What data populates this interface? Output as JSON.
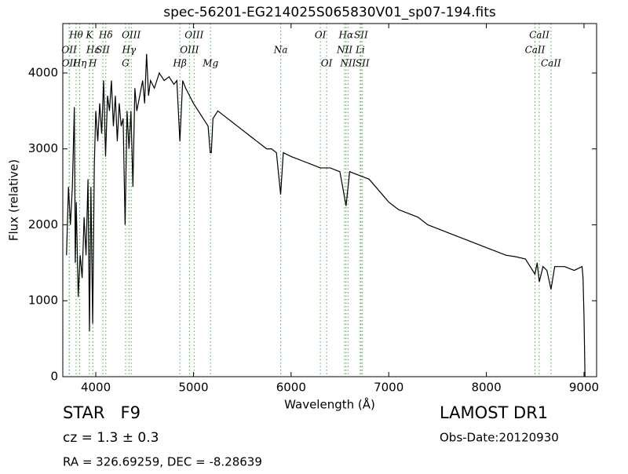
{
  "chart_data": {
    "type": "line",
    "title": "spec-56201-EG214025S065830V01_sp07-194.fits",
    "x_label": "Wavelength (Å)",
    "y_label": "Flux (relative)",
    "xlim": [
      3662,
      9129
    ],
    "ylim": [
      0,
      4651
    ],
    "xticks": [
      4000,
      5000,
      6000,
      7000,
      8000,
      9000
    ],
    "yticks": [
      0,
      1000,
      2000,
      3000,
      4000
    ],
    "color": "#000000",
    "line_color": "#44aa44",
    "x": [
      3700,
      3720,
      3740,
      3760,
      3780,
      3790,
      3800,
      3820,
      3840,
      3860,
      3880,
      3900,
      3920,
      3935,
      3950,
      3968,
      3985,
      4000,
      4020,
      4040,
      4060,
      4080,
      4100,
      4120,
      4140,
      4160,
      4180,
      4200,
      4220,
      4240,
      4260,
      4280,
      4300,
      4320,
      4340,
      4360,
      4380,
      4400,
      4420,
      4450,
      4480,
      4500,
      4520,
      4540,
      4560,
      4600,
      4650,
      4700,
      4750,
      4800,
      4830,
      4861,
      4890,
      4920,
      4960,
      5000,
      5050,
      5100,
      5150,
      5172,
      5183,
      5200,
      5250,
      5300,
      5350,
      5400,
      5450,
      5500,
      5550,
      5600,
      5650,
      5700,
      5750,
      5800,
      5850,
      5893,
      5920,
      6000,
      6100,
      6200,
      6300,
      6400,
      6500,
      6563,
      6600,
      6700,
      6800,
      6900,
      7000,
      7100,
      7200,
      7300,
      7400,
      7500,
      7600,
      7700,
      7800,
      7900,
      8000,
      8100,
      8200,
      8300,
      8400,
      8498,
      8520,
      8542,
      8580,
      8620,
      8662,
      8700,
      8800,
      8900,
      8980,
      8990,
      9000,
      9010
    ],
    "values": [
      1600,
      2500,
      2000,
      2500,
      3550,
      1500,
      2300,
      1050,
      1600,
      1300,
      2100,
      1600,
      2600,
      600,
      2500,
      700,
      2800,
      3500,
      3100,
      3600,
      3200,
      3900,
      2900,
      3700,
      3500,
      3900,
      3300,
      3700,
      3100,
      3600,
      3300,
      3400,
      2000,
      3500,
      3000,
      3500,
      2500,
      3800,
      3500,
      3700,
      3900,
      3600,
      4250,
      3700,
      3900,
      3800,
      4000,
      3900,
      3950,
      3850,
      3900,
      3100,
      3900,
      3800,
      3700,
      3600,
      3500,
      3400,
      3300,
      2950,
      2950,
      3400,
      3500,
      3450,
      3400,
      3350,
      3300,
      3250,
      3200,
      3150,
      3100,
      3050,
      3000,
      3000,
      2950,
      2400,
      2950,
      2900,
      2850,
      2800,
      2750,
      2750,
      2700,
      2250,
      2700,
      2650,
      2600,
      2450,
      2300,
      2200,
      2150,
      2100,
      2000,
      1950,
      1900,
      1850,
      1800,
      1750,
      1700,
      1650,
      1600,
      1580,
      1550,
      1350,
      1500,
      1250,
      1450,
      1400,
      1150,
      1450,
      1450,
      1400,
      1450,
      1300,
      800,
      0
    ],
    "line_labels": [
      [
        {
          "label": "Hθ",
          "x": 3798
        },
        {
          "label": "K",
          "x": 3934
        },
        {
          "label": "Hδ",
          "x": 4102
        },
        {
          "label": "OIII",
          "x": 4363
        },
        {
          "label": "OIII",
          "x": 5007
        },
        {
          "label": "OI",
          "x": 6300
        },
        {
          "label": "Hα",
          "x": 6563
        },
        {
          "label": "SII",
          "x": 6716
        },
        {
          "label": "CaII",
          "x": 8542
        }
      ],
      [
        {
          "label": "OII",
          "x": 3727
        },
        {
          "label": "Hε",
          "x": 3970
        },
        {
          "label": "SII",
          "x": 4072
        },
        {
          "label": "Hγ",
          "x": 4340
        },
        {
          "label": "OIII",
          "x": 4959
        },
        {
          "label": "Na",
          "x": 5894
        },
        {
          "label": "NII",
          "x": 6548
        },
        {
          "label": "Li",
          "x": 6708
        },
        {
          "label": "CaII",
          "x": 8498
        }
      ],
      [
        {
          "label": "OII",
          "x": 3729
        },
        {
          "label": "Hη",
          "x": 3835
        },
        {
          "label": "H",
          "x": 3969
        },
        {
          "label": "G",
          "x": 4305
        },
        {
          "label": "Hβ",
          "x": 4861
        },
        {
          "label": "Mg",
          "x": 5175
        },
        {
          "label": "OI",
          "x": 6364
        },
        {
          "label": "NII",
          "x": 6583
        },
        {
          "label": "SII",
          "x": 6731
        },
        {
          "label": "CaII",
          "x": 8662
        }
      ]
    ]
  },
  "footer": {
    "object": "STAR   F9",
    "cz": "cz = 1.3 ± 0.3",
    "coords": "RA = 326.69259, DEC = -8.28639",
    "survey": "LAMOST DR1",
    "obs_date": "Obs-Date:20120930"
  }
}
